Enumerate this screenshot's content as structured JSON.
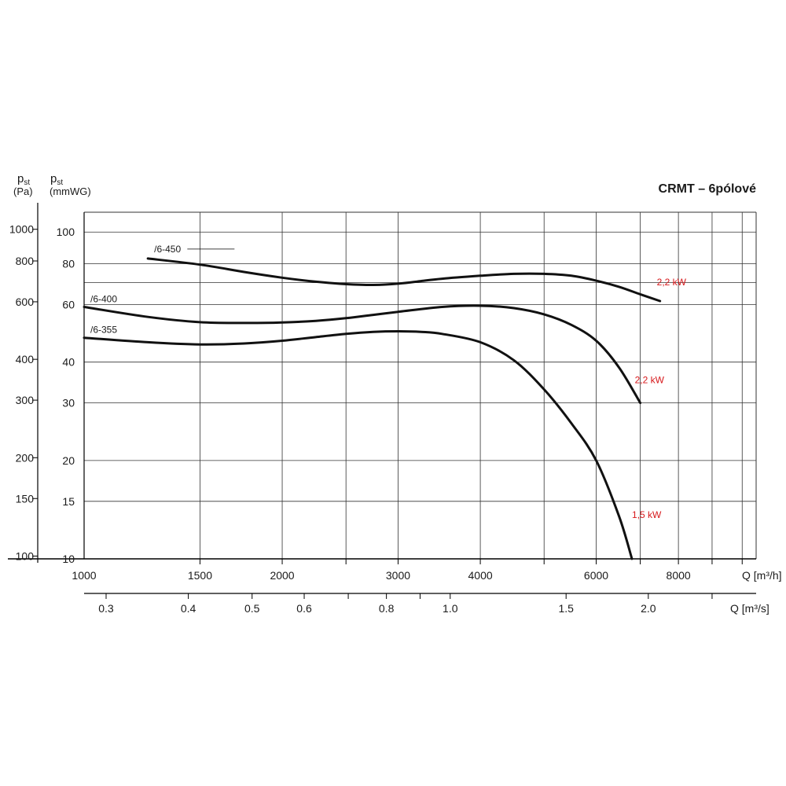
{
  "chart_data": {
    "type": "line",
    "title": "CRMT – 6pólové",
    "y_axis_pa": {
      "label_main": "p",
      "label_sub": "st",
      "unit": "(Pa)",
      "ticks": [
        {
          "label": "1000",
          "value": 1000
        },
        {
          "label": "800",
          "value": 800
        },
        {
          "label": "600",
          "value": 600
        },
        {
          "label": "400",
          "value": 400
        },
        {
          "label": "300",
          "value": 300
        },
        {
          "label": "200",
          "value": 200
        },
        {
          "label": "150",
          "value": 150
        },
        {
          "label": "100",
          "value": 100
        }
      ]
    },
    "y_axis_mmwg": {
      "label_main": "p",
      "label_sub": "st",
      "unit": "(mmWG)",
      "scale": "log",
      "ylim": [
        10,
        115
      ],
      "ticks": [
        {
          "label": "100",
          "value": 100
        },
        {
          "label": "80",
          "value": 80
        },
        {
          "label": "60",
          "value": 60
        },
        {
          "label": "40",
          "value": 40
        },
        {
          "label": "30",
          "value": 30
        },
        {
          "label": "20",
          "value": 20
        },
        {
          "label": "15",
          "value": 15
        },
        {
          "label": "10",
          "value": 10
        }
      ],
      "gridlines": [
        10,
        15,
        20,
        30,
        40,
        60,
        70,
        80,
        100
      ]
    },
    "x_axis_m3h": {
      "label": "Q [m³/h]",
      "scale": "log",
      "xlim": [
        1000,
        10500
      ],
      "ticks": [
        {
          "label": "1000",
          "value": 1000
        },
        {
          "label": "1500",
          "value": 1500
        },
        {
          "label": "2000",
          "value": 2000
        },
        {
          "label": "3000",
          "value": 3000
        },
        {
          "label": "4000",
          "value": 4000
        },
        {
          "label": "6000",
          "value": 6000
        },
        {
          "label": "8000",
          "value": 8000
        }
      ],
      "gridlines": [
        1500,
        2000,
        2500,
        3000,
        4000,
        5000,
        6000,
        7000,
        8000,
        9000,
        10000
      ]
    },
    "x_axis_m3s": {
      "label": "Q [m³/s]",
      "ticks": [
        {
          "label": "0.3",
          "value": 0.3
        },
        {
          "label": "0.4",
          "value": 0.4
        },
        {
          "label": "0.5",
          "value": 0.5
        },
        {
          "label": "0.6",
          "value": 0.6
        },
        {
          "label": "0.8",
          "value": 0.8
        },
        {
          "label": "1.0",
          "value": 1.0
        },
        {
          "label": "1.5",
          "value": 1.5
        },
        {
          "label": "2.0",
          "value": 2.0
        }
      ],
      "minor_ticks": [
        0.7,
        0.9,
        2.5
      ]
    },
    "series": [
      {
        "name": "/6-450",
        "power": "2,2 kW",
        "x": [
          1250,
          1500,
          1750,
          2000,
          2250,
          2500,
          2750,
          3000,
          3250,
          3500,
          4000,
          4500,
          5000,
          5500,
          6000,
          6500,
          7000,
          7500
        ],
        "y": [
          83,
          79.5,
          75.5,
          72.5,
          70.5,
          69.3,
          68.9,
          69.5,
          70.8,
          72,
          73.5,
          74.5,
          74.5,
          73.5,
          71,
          68,
          64.5,
          61.5
        ]
      },
      {
        "name": "/6-400",
        "power": "2,2 kW",
        "x": [
          1000,
          1250,
          1500,
          1750,
          2000,
          2250,
          2500,
          2750,
          3000,
          3500,
          4000,
          4500,
          5000,
          5500,
          6000,
          6500,
          7000
        ],
        "y": [
          59,
          55,
          53,
          52.7,
          52.9,
          53.5,
          54.5,
          55.8,
          57,
          59,
          59.5,
          58.5,
          56,
          52,
          46.5,
          38.5,
          30
        ]
      },
      {
        "name": "/6-355",
        "power": "1,5 kW",
        "x": [
          1000,
          1250,
          1500,
          1750,
          2000,
          2250,
          2500,
          2750,
          3000,
          3250,
          3500,
          4000,
          4500,
          5000,
          5500,
          6000,
          6500,
          6800
        ],
        "y": [
          47.5,
          46,
          45.3,
          45.6,
          46.5,
          47.7,
          48.8,
          49.5,
          49.7,
          49.5,
          48.8,
          46,
          40.5,
          33,
          26,
          20,
          13.5,
          10
        ]
      }
    ],
    "colors": {
      "curve": "#111111",
      "grid": "#333333",
      "power_label": "#d7191c"
    },
    "grid": true
  }
}
